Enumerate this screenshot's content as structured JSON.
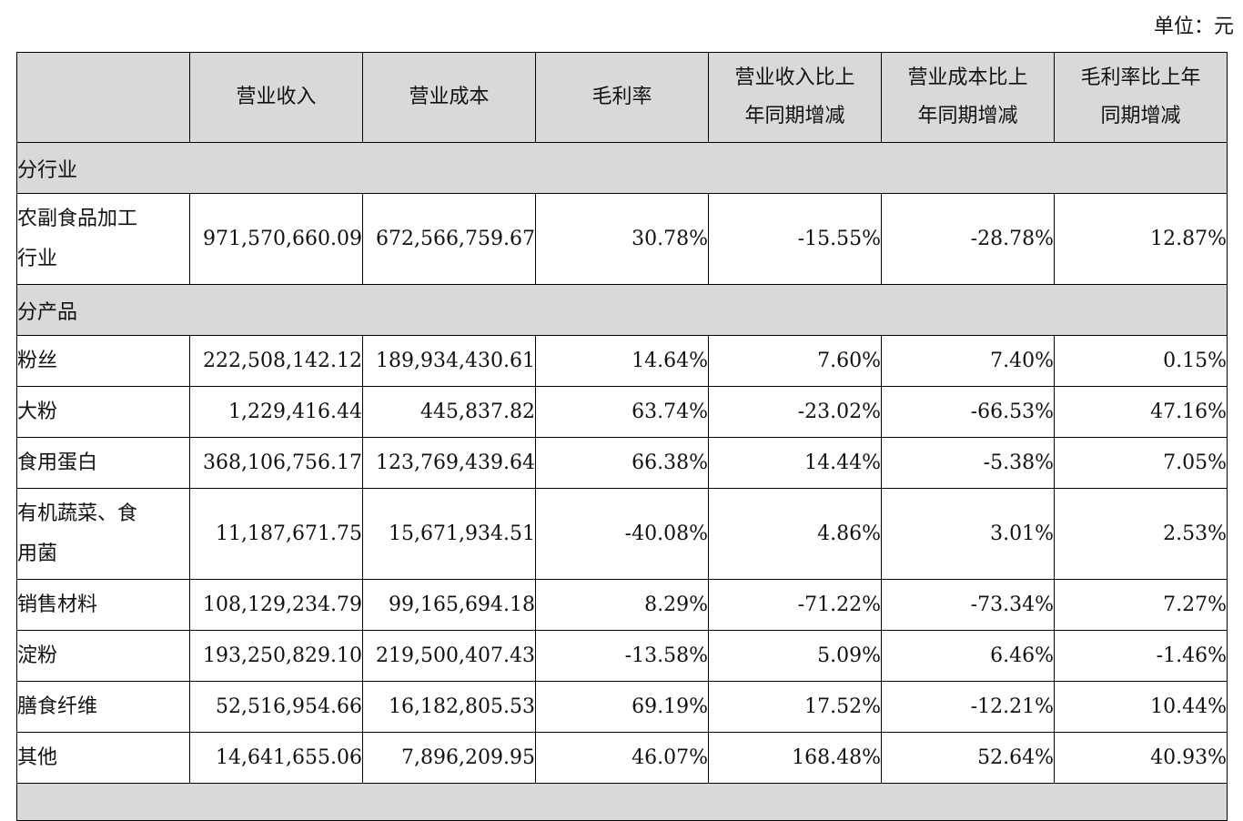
{
  "unit_label": "单位：元",
  "headers": [
    "",
    "营业收入",
    "营业成本",
    "毛利率",
    "营业收入比上年同期增减",
    "营业成本比上年同期增减",
    "毛利率比上年同期增减"
  ],
  "header_lines": {
    "col4": [
      "营业收入比上",
      "年同期增减"
    ],
    "col5": [
      "营业成本比上",
      "年同期增减"
    ],
    "col6": [
      "毛利率比上年",
      "同期增减"
    ]
  },
  "section_industry": "分行业",
  "industry_row": {
    "label": "农副食品加工行业",
    "label_lines": [
      "农副食品加工",
      "行业"
    ],
    "revenue": "971,570,660.09",
    "cost": "672,566,759.67",
    "margin": "30.78%",
    "rev_change": "-15.55%",
    "cost_change": "-28.78%",
    "margin_change": "12.87%"
  },
  "section_product": "分产品",
  "products": [
    {
      "label": "粉丝",
      "revenue": "222,508,142.12",
      "cost": "189,934,430.61",
      "margin": "14.64%",
      "rev_change": "7.60%",
      "cost_change": "7.40%",
      "margin_change": "0.15%"
    },
    {
      "label": "大粉",
      "revenue": "1,229,416.44",
      "cost": "445,837.82",
      "margin": "63.74%",
      "rev_change": "-23.02%",
      "cost_change": "-66.53%",
      "margin_change": "47.16%"
    },
    {
      "label": "食用蛋白",
      "revenue": "368,106,756.17",
      "cost": "123,769,439.64",
      "margin": "66.38%",
      "rev_change": "14.44%",
      "cost_change": "-5.38%",
      "margin_change": "7.05%"
    },
    {
      "label": "有机蔬菜、食用菌",
      "label_lines": [
        "有机蔬菜、食",
        "用菌"
      ],
      "revenue": "11,187,671.75",
      "cost": "15,671,934.51",
      "margin": "-40.08%",
      "rev_change": "4.86%",
      "cost_change": "3.01%",
      "margin_change": "2.53%"
    },
    {
      "label": "销售材料",
      "revenue": "108,129,234.79",
      "cost": "99,165,694.18",
      "margin": "8.29%",
      "rev_change": "-71.22%",
      "cost_change": "-73.34%",
      "margin_change": "7.27%"
    },
    {
      "label": "淀粉",
      "revenue": "193,250,829.10",
      "cost": "219,500,407.43",
      "margin": "-13.58%",
      "rev_change": "5.09%",
      "cost_change": "6.46%",
      "margin_change": "-1.46%"
    },
    {
      "label": "膳食纤维",
      "revenue": "52,516,954.66",
      "cost": "16,182,805.53",
      "margin": "69.19%",
      "rev_change": "17.52%",
      "cost_change": "-12.21%",
      "margin_change": "10.44%"
    },
    {
      "label": "其他",
      "revenue": "14,641,655.06",
      "cost": "7,896,209.95",
      "margin": "46.07%",
      "rev_change": "168.48%",
      "cost_change": "52.64%",
      "margin_change": "40.93%"
    }
  ],
  "colors": {
    "header_bg": "#d9d9d9",
    "border": "#000000",
    "text": "#111111"
  }
}
